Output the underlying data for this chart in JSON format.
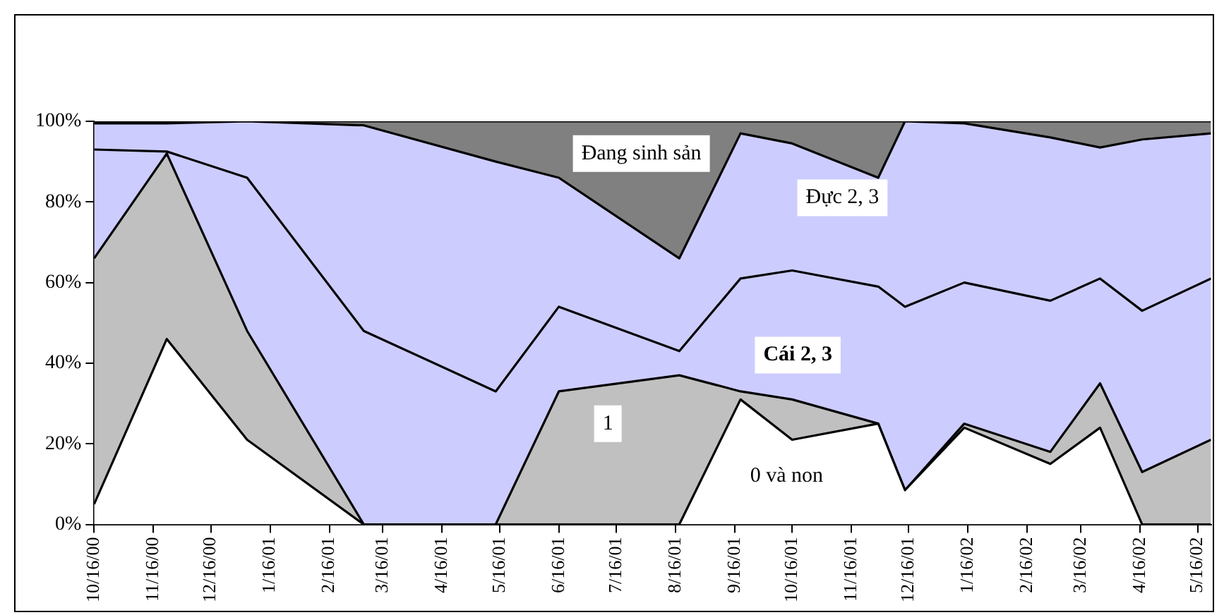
{
  "chart_data": {
    "type": "area",
    "stacked": true,
    "x": [
      "2000-10-16",
      "2000-11-23",
      "2001-01-04",
      "2001-03-06",
      "2001-05-14",
      "2001-06-16",
      "2001-08-18",
      "2001-09-19",
      "2001-10-16",
      "2001-11-30",
      "2001-12-14",
      "2002-01-14",
      "2002-02-28",
      "2002-03-26",
      "2002-04-17",
      "2002-05-23"
    ],
    "series": [
      {
        "name": "0 và non",
        "color": "#ffffff",
        "values": [
          5,
          46,
          21,
          0,
          0,
          0,
          0,
          31,
          21,
          25,
          8.5,
          24,
          15,
          24,
          0,
          0
        ]
      },
      {
        "name": "1",
        "color": "#c0c0c0",
        "values": [
          61,
          46,
          27,
          0,
          0,
          33,
          37,
          2,
          10,
          0,
          0,
          1,
          3,
          11,
          13,
          21
        ]
      },
      {
        "name": "Cái 2, 3",
        "color": "#ccccff",
        "values": [
          27,
          0.5,
          38,
          48,
          33,
          21,
          6,
          28,
          32,
          34,
          45.5,
          35,
          37.5,
          26,
          40,
          40
        ]
      },
      {
        "name": "Đực 2, 3",
        "color": "#ccccff",
        "values": [
          6.5,
          7,
          14,
          51,
          57,
          32,
          23,
          36,
          31.5,
          27,
          46,
          39.5,
          40.5,
          32.5,
          42.5,
          36
        ]
      },
      {
        "name": "Đang sinh sản",
        "color": "#808080",
        "values": [
          0.5,
          0.5,
          0,
          1,
          10,
          14,
          34,
          3,
          5.5,
          14,
          0,
          0.5,
          4,
          6.5,
          4.5,
          3
        ]
      }
    ],
    "xlim": [
      "2000-10-16",
      "2002-05-23"
    ],
    "xticks": [
      {
        "value": "2000-10-16",
        "label": "10/16/00"
      },
      {
        "value": "2000-11-16",
        "label": "11/16/00"
      },
      {
        "value": "2000-12-16",
        "label": "12/16/00"
      },
      {
        "value": "2001-01-16",
        "label": "1/16/01"
      },
      {
        "value": "2001-02-16",
        "label": "2/16/01"
      },
      {
        "value": "2001-03-16",
        "label": "3/16/01"
      },
      {
        "value": "2001-04-16",
        "label": "4/16/01"
      },
      {
        "value": "2001-05-16",
        "label": "5/16/01"
      },
      {
        "value": "2001-06-16",
        "label": "6/16/01"
      },
      {
        "value": "2001-07-16",
        "label": "7/16/01"
      },
      {
        "value": "2001-08-16",
        "label": "8/16/01"
      },
      {
        "value": "2001-09-16",
        "label": "9/16/01"
      },
      {
        "value": "2001-10-16",
        "label": "10/16/01"
      },
      {
        "value": "2001-11-16",
        "label": "11/16/01"
      },
      {
        "value": "2001-12-16",
        "label": "12/16/01"
      },
      {
        "value": "2002-01-16",
        "label": "1/16/02"
      },
      {
        "value": "2002-02-16",
        "label": "2/16/02"
      },
      {
        "value": "2002-03-16",
        "label": "3/16/02"
      },
      {
        "value": "2002-04-16",
        "label": "4/16/02"
      },
      {
        "value": "2002-05-16",
        "label": "5/16/02"
      }
    ],
    "ylim": [
      0,
      100
    ],
    "yticks": [
      {
        "value": 0,
        "label": "0%"
      },
      {
        "value": 20,
        "label": "20%"
      },
      {
        "value": 40,
        "label": "40%"
      },
      {
        "value": 60,
        "label": "60%"
      },
      {
        "value": 80,
        "label": "80%"
      },
      {
        "value": 100,
        "label": "100%"
      }
    ],
    "grid": false,
    "legend": false
  }
}
